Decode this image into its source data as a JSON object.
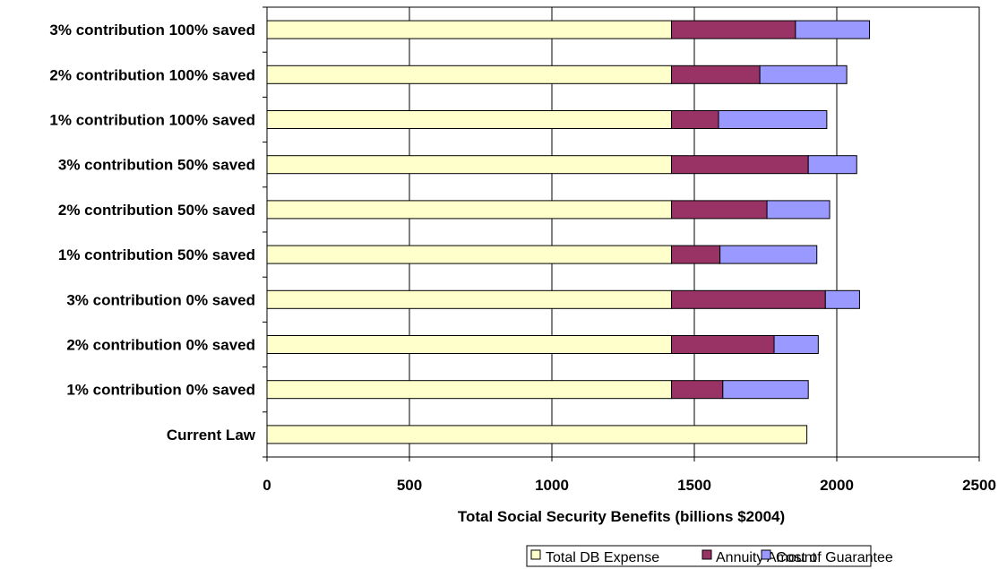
{
  "chart_data": {
    "type": "bar",
    "orientation": "horizontal",
    "stacked": true,
    "categories": [
      "Current Law",
      "1% contribution 0% saved",
      "2% contribution 0% saved",
      "3% contribution 0% saved",
      "1% contribution 50% saved",
      "2% contribution 50% saved",
      "3% contribution 50% saved",
      "1% contribution 100% saved",
      "2% contribution 100% saved",
      "3% contribution 100% saved"
    ],
    "series": [
      {
        "name": "Total DB Expense",
        "color": "#FFFFCC",
        "values": [
          1895,
          1420,
          1420,
          1420,
          1420,
          1420,
          1420,
          1420,
          1420,
          1420
        ]
      },
      {
        "name": "Annuity Amount",
        "color": "#993366",
        "values": [
          0,
          180,
          360,
          540,
          170,
          335,
          480,
          165,
          310,
          435
        ]
      },
      {
        "name": "Cost of Guarantee",
        "color": "#9999FF",
        "values": [
          0,
          300,
          155,
          120,
          340,
          220,
          170,
          380,
          305,
          260
        ]
      }
    ],
    "xlabel": "Total Social Security Benefits (billions $2004)",
    "ylabel": "",
    "title": "",
    "xlim": [
      0,
      2500
    ],
    "xticks": [
      0,
      500,
      1000,
      1500,
      2000,
      2500
    ],
    "grid": "vertical",
    "legend_position": "bottom"
  }
}
